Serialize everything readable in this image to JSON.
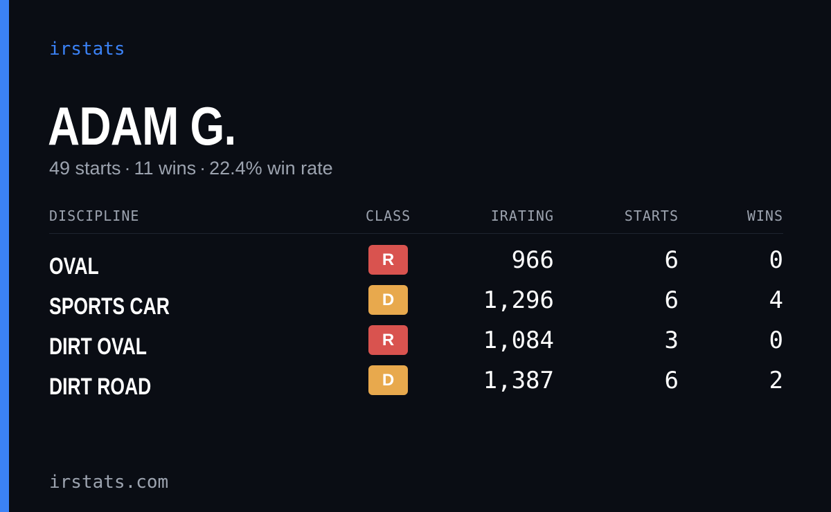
{
  "brand": "irstats",
  "driver": {
    "name": "ADAM G."
  },
  "summary": {
    "starts": "49 starts",
    "wins": "11 wins",
    "win_rate": "22.4% win rate",
    "separator": "·"
  },
  "table": {
    "headers": {
      "discipline": "DISCIPLINE",
      "class": "CLASS",
      "irating": "IRATING",
      "starts": "STARTS",
      "wins": "WINS"
    },
    "rows": [
      {
        "discipline": "OVAL",
        "class": "R",
        "class_color": "#d9534f",
        "irating": "966",
        "starts": "6",
        "wins": "0"
      },
      {
        "discipline": "SPORTS CAR",
        "class": "D",
        "class_color": "#e8a94d",
        "irating": "1,296",
        "starts": "6",
        "wins": "4"
      },
      {
        "discipline": "DIRT OVAL",
        "class": "R",
        "class_color": "#d9534f",
        "irating": "1,084",
        "starts": "3",
        "wins": "0"
      },
      {
        "discipline": "DIRT ROAD",
        "class": "D",
        "class_color": "#e8a94d",
        "irating": "1,387",
        "starts": "6",
        "wins": "2"
      }
    ]
  },
  "footer": "irstats.com",
  "colors": {
    "accent": "#3b82f6",
    "background": "#0a0d14",
    "muted": "#9ca3af",
    "class_r": "#d9534f",
    "class_d": "#e8a94d"
  }
}
